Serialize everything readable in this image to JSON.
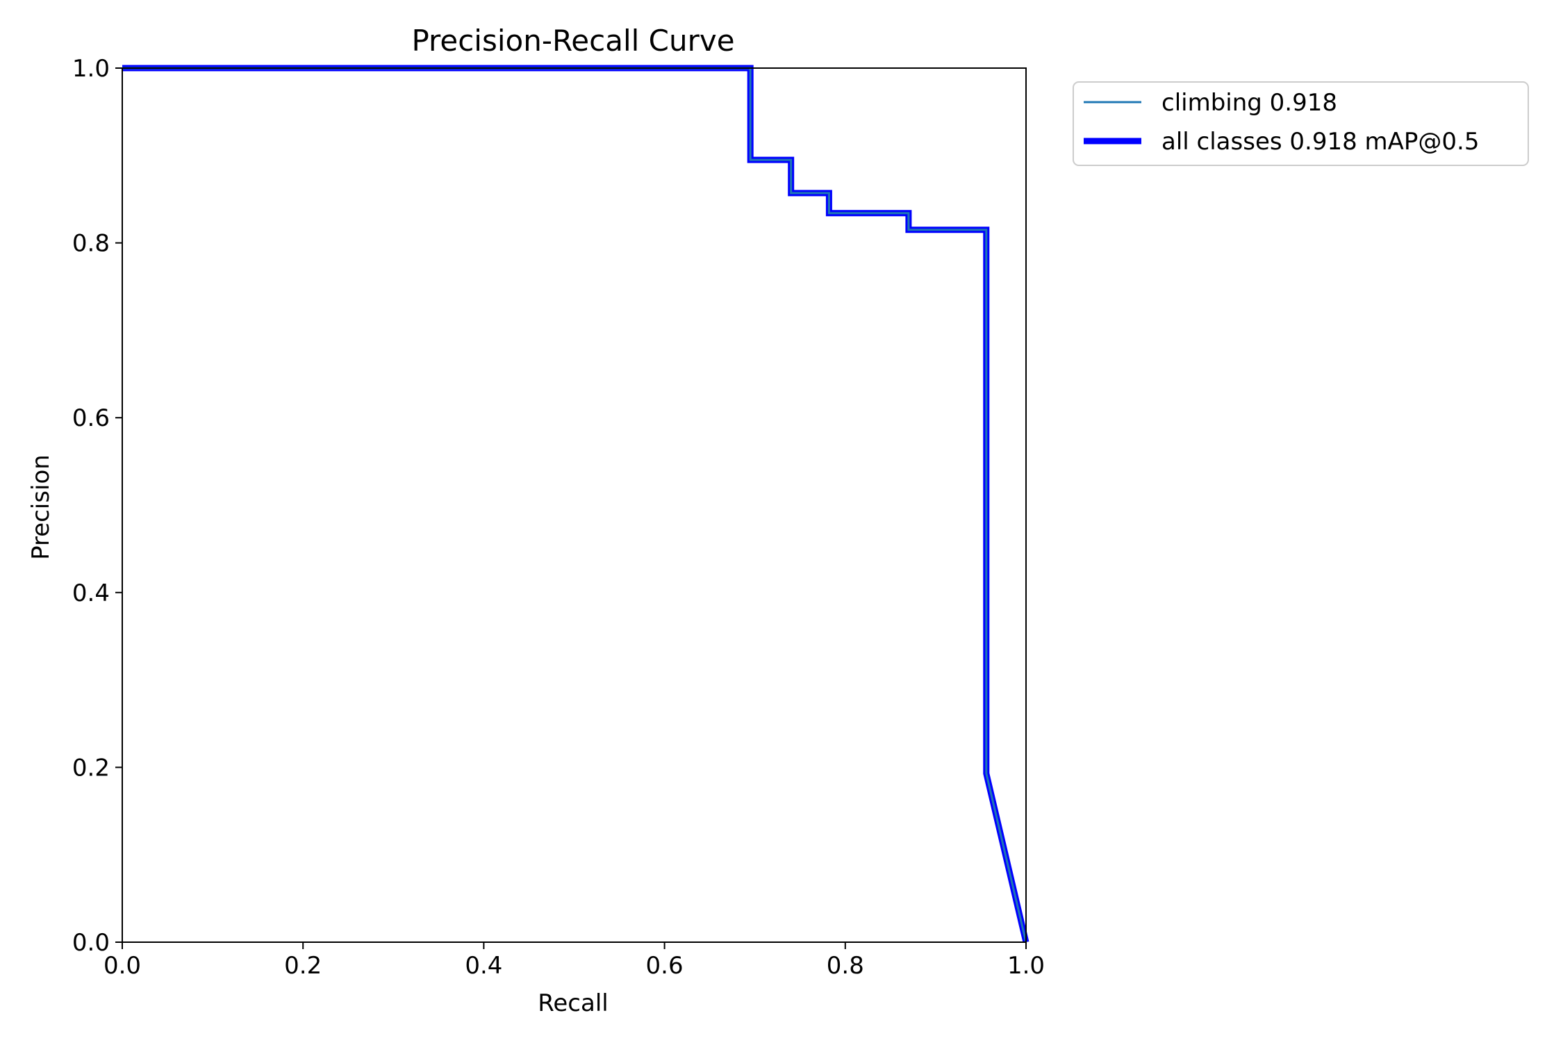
{
  "chart_data": {
    "type": "line",
    "title": "Precision-Recall Curve",
    "xlabel": "Recall",
    "ylabel": "Precision",
    "xlim": [
      0,
      1
    ],
    "ylim": [
      0,
      1
    ],
    "x_ticks": [
      0.0,
      0.2,
      0.4,
      0.6,
      0.8,
      1.0
    ],
    "y_ticks": [
      0.0,
      0.2,
      0.4,
      0.6,
      0.8,
      1.0
    ],
    "x_tick_labels": [
      "0.0",
      "0.2",
      "0.4",
      "0.6",
      "0.8",
      "1.0"
    ],
    "y_tick_labels": [
      "0.0",
      "0.2",
      "0.4",
      "0.6",
      "0.8",
      "1.0"
    ],
    "grid": false,
    "legend_position": "outside upper right",
    "series": [
      {
        "name": "climbing 0.918",
        "color": "#1f77b4",
        "x": [
          0.0,
          0.695,
          0.695,
          0.74,
          0.74,
          0.782,
          0.782,
          0.87,
          0.87,
          0.956,
          0.956,
          1.0
        ],
        "y": [
          1.0,
          1.0,
          0.895,
          0.895,
          0.857,
          0.857,
          0.834,
          0.834,
          0.815,
          0.815,
          0.193,
          0.0
        ]
      },
      {
        "name": "all classes 0.918 mAP@0.5",
        "color": "#0000ff",
        "x": [
          0.0,
          0.695,
          0.695,
          0.74,
          0.74,
          0.782,
          0.782,
          0.87,
          0.87,
          0.956,
          0.956,
          1.0
        ],
        "y": [
          1.0,
          1.0,
          0.895,
          0.895,
          0.857,
          0.857,
          0.834,
          0.834,
          0.815,
          0.815,
          0.193,
          0.0
        ]
      }
    ]
  }
}
